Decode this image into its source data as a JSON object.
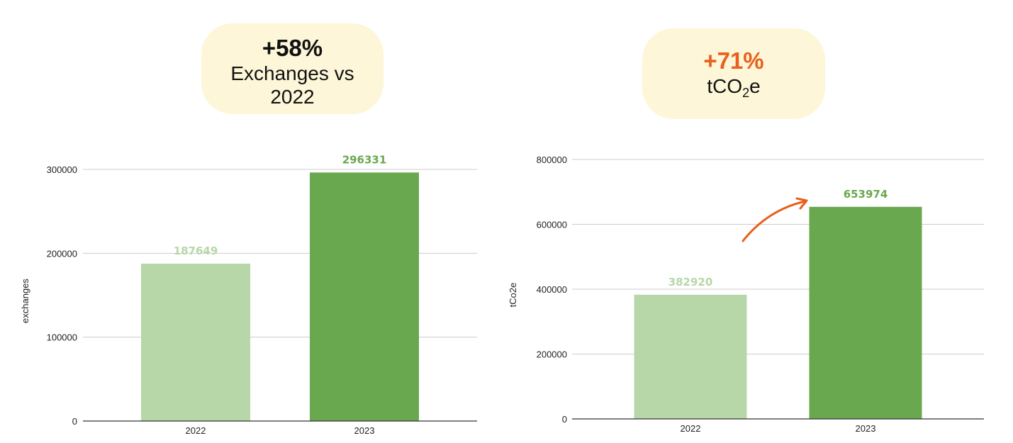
{
  "callouts": {
    "left": {
      "percent": "+58%",
      "label_line1": "Exchanges vs",
      "label_line2": "2022",
      "percent_color": "#111111"
    },
    "right": {
      "percent": "+71%",
      "label_main": "tCO",
      "label_sub": "2",
      "label_tail": "e",
      "percent_color": "#e8601c"
    }
  },
  "colors": {
    "bar_light": "#b7d7a8",
    "bar_dark": "#6aa84f",
    "grid": "#cccccc",
    "axis": "#333333",
    "arrow": "#e8601c"
  },
  "chart_data": [
    {
      "type": "bar",
      "title": "",
      "xlabel": "",
      "ylabel": "exchanges",
      "ylim": [
        0,
        300000
      ],
      "yticks": [
        0,
        100000,
        200000,
        300000
      ],
      "categories": [
        "2022",
        "2023"
      ],
      "values": [
        187649,
        296331
      ],
      "data_labels": [
        "187649",
        "296331"
      ],
      "grid": true,
      "legend": "none"
    },
    {
      "type": "bar",
      "title": "",
      "xlabel": "",
      "ylabel": "tCo2e",
      "ylim": [
        0,
        800000
      ],
      "yticks": [
        0,
        200000,
        400000,
        600000,
        800000
      ],
      "categories": [
        "2022",
        "2023"
      ],
      "values": [
        382920,
        653974
      ],
      "data_labels": [
        "382920",
        "653974"
      ],
      "grid": true,
      "legend": "none"
    }
  ]
}
